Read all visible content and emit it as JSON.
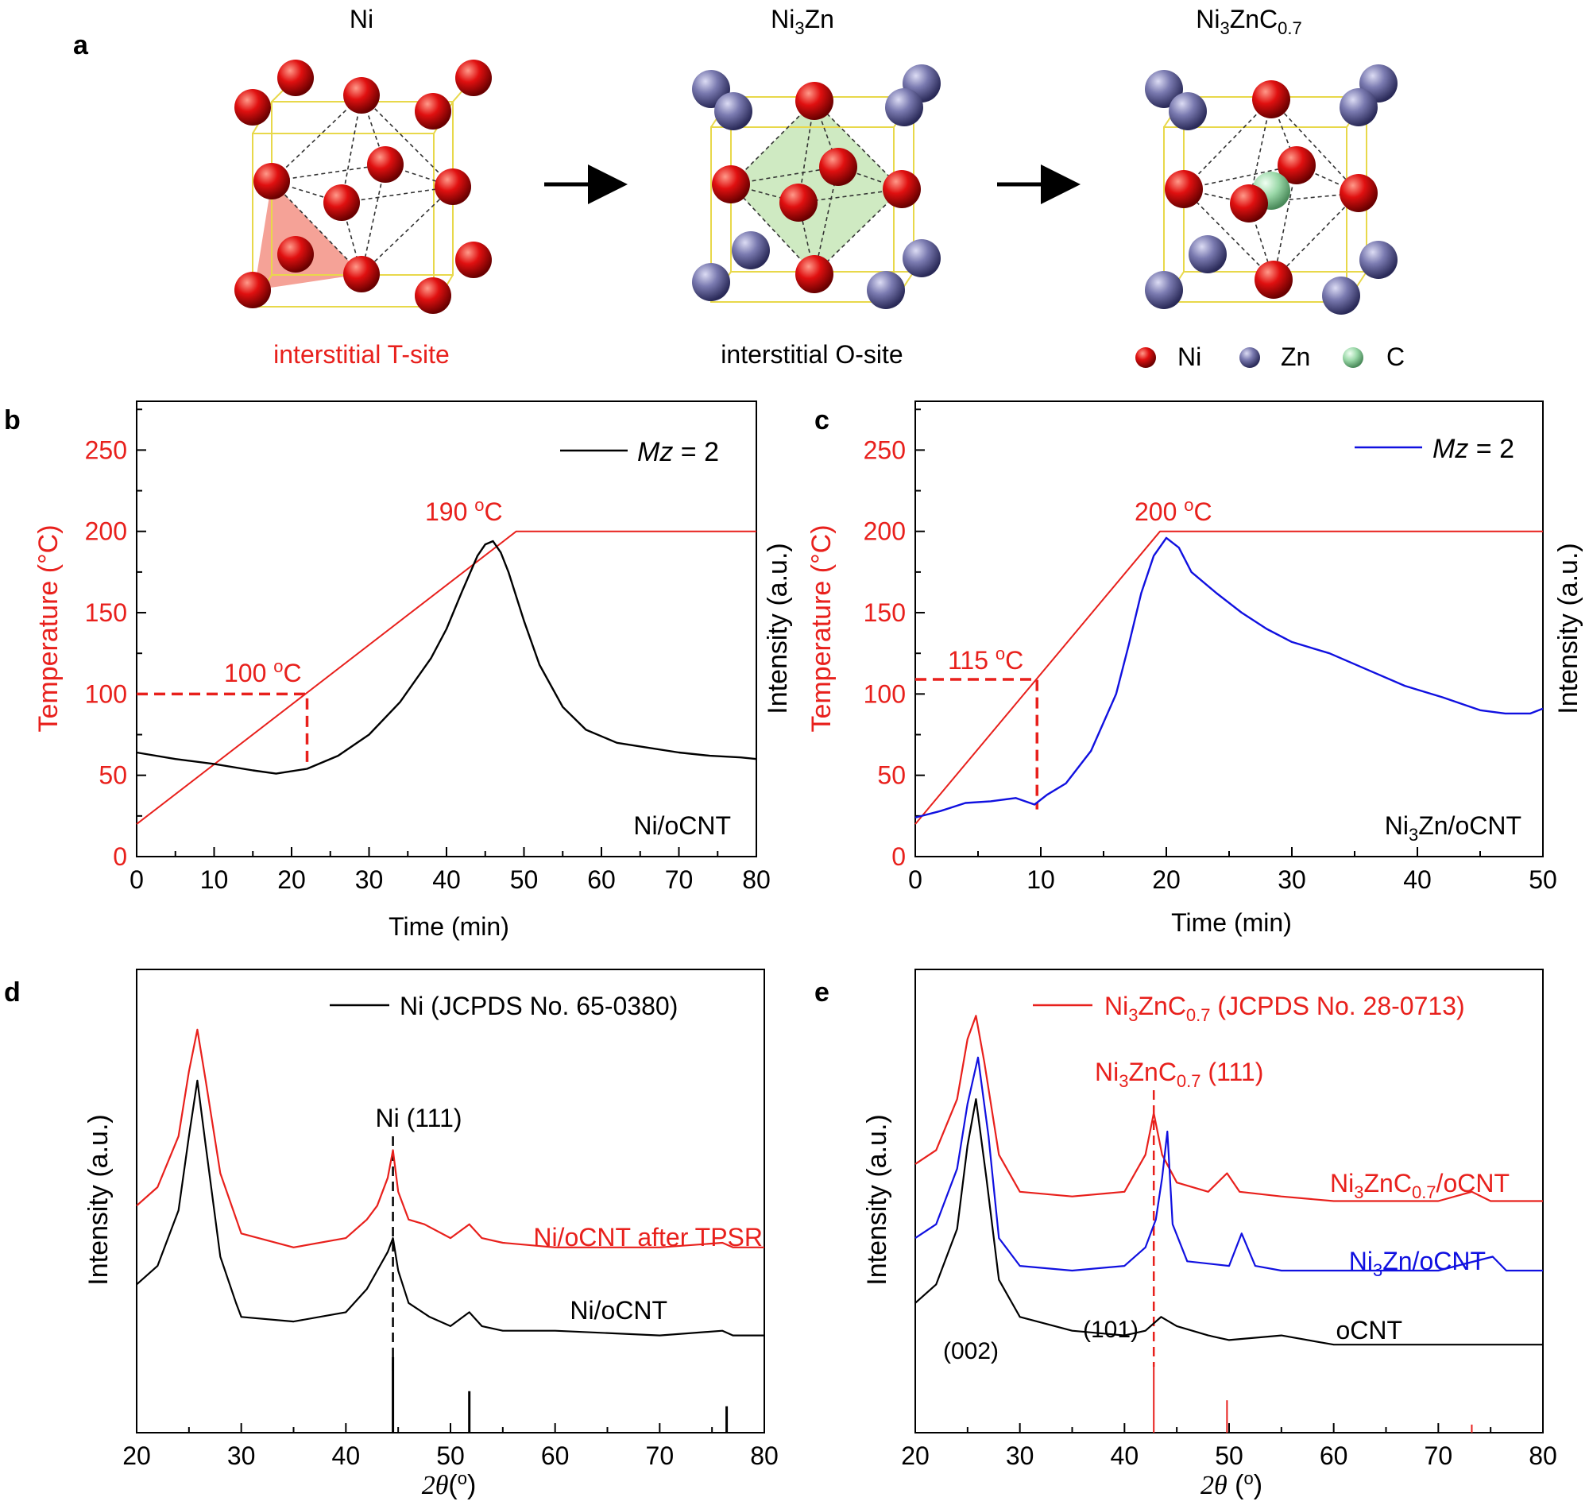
{
  "panel_a": {
    "letter": "a",
    "structures": [
      {
        "title": "Ni",
        "caption": "interstitial T-site",
        "caption_color": "#e8201c"
      },
      {
        "title_base": "Ni",
        "title_sub": "3",
        "title_rest": "Zn",
        "caption": "interstitial O-site",
        "caption_color": "#000000"
      },
      {
        "title_base": "Ni",
        "title_sub": "3",
        "title_rest": "ZnC",
        "title_sub2": "0.7"
      }
    ],
    "legend": [
      "Ni",
      "Zn",
      "C"
    ],
    "colors": {
      "ni": "#e01010",
      "zn": "#7a7ab0",
      "c": "#9ad8a8"
    }
  },
  "chart_data": [
    {
      "type": "line",
      "panel": "b",
      "x_label": "Time (min)",
      "x_ticks": [
        0,
        10,
        20,
        30,
        40,
        50,
        60,
        70,
        80
      ],
      "xlim": [
        0,
        80
      ],
      "y_label_left": "Temperature (°C)",
      "y_label_right": "Intensity (a.u.)",
      "y_ticks": [
        0,
        50,
        100,
        150,
        200,
        250
      ],
      "ylim": [
        0,
        280
      ],
      "legend": "Mz = 2",
      "legend_italic": "Mz",
      "legend_rest": " = 2",
      "legend_color": "#000000",
      "sample_label": "Ni/oCNT",
      "annotations": [
        {
          "text_base": "100 ",
          "text_sup": "o",
          "text_rest": "C",
          "x": 22,
          "y": 100
        },
        {
          "text_base": "190 ",
          "text_sup": "o",
          "text_rest": "C",
          "x": 46,
          "y": 200
        }
      ],
      "series": [
        {
          "role": "temperature",
          "color": "#e8201c",
          "x": [
            0,
            49,
            80
          ],
          "y": [
            20,
            200,
            200
          ]
        },
        {
          "role": "intensity",
          "color": "#000000",
          "x": [
            0,
            5,
            10,
            15,
            18,
            22,
            26,
            30,
            34,
            38,
            40,
            42,
            44,
            45,
            46,
            47,
            48,
            50,
            52,
            55,
            58,
            62,
            66,
            70,
            74,
            78,
            80
          ],
          "y": [
            64,
            60,
            57,
            53,
            51,
            54,
            62,
            75,
            95,
            122,
            140,
            163,
            185,
            192,
            194,
            187,
            175,
            145,
            118,
            92,
            78,
            70,
            67,
            64,
            62,
            61,
            60
          ]
        }
      ]
    },
    {
      "type": "line",
      "panel": "c",
      "x_label": "Time (min)",
      "x_ticks": [
        0,
        10,
        20,
        30,
        40,
        50
      ],
      "xlim": [
        0,
        50
      ],
      "y_label_left": "Temperature (°C)",
      "y_label_right": "Intensity (a.u.)",
      "y_ticks": [
        0,
        50,
        100,
        150,
        200,
        250
      ],
      "ylim": [
        0,
        280
      ],
      "legend": "Mz = 2",
      "legend_italic": "Mz",
      "legend_rest": " = 2",
      "legend_color": "#1010e0",
      "sample_label_base": "Ni",
      "sample_label_sub": "3",
      "sample_label_rest": "Zn/oCNT",
      "annotations": [
        {
          "text_base": "115 ",
          "text_sup": "o",
          "text_rest": "C",
          "x": 9.7,
          "y": 109
        },
        {
          "text_base": "200 ",
          "text_sup": "o",
          "text_rest": "C",
          "x": 19.5,
          "y": 200
        }
      ],
      "series": [
        {
          "role": "temperature",
          "color": "#e8201c",
          "x": [
            0,
            19.5,
            50
          ],
          "y": [
            20,
            200,
            200
          ]
        },
        {
          "role": "intensity",
          "color": "#1010e0",
          "x": [
            0,
            2,
            4,
            6,
            8,
            9.5,
            10.5,
            12,
            14,
            16,
            17,
            18,
            19,
            20,
            21,
            22,
            24,
            26,
            28,
            30,
            33,
            36,
            39,
            42,
            45,
            47,
            49,
            50
          ],
          "y": [
            24,
            28,
            33,
            34,
            36,
            32,
            38,
            45,
            65,
            100,
            130,
            162,
            185,
            196,
            190,
            175,
            162,
            150,
            140,
            132,
            125,
            115,
            105,
            98,
            90,
            88,
            88,
            91
          ]
        }
      ]
    },
    {
      "type": "line",
      "panel": "d",
      "x_label": "2θ(°)",
      "x_ticks": [
        20,
        30,
        40,
        50,
        60,
        70,
        80
      ],
      "xlim": [
        20,
        80
      ],
      "y_label": "Intensity (a.u.)",
      "legend": "Ni (JCPDS No. 65-0380)",
      "legend_color": "#000000",
      "peak_label": "Ni (111)",
      "peak_x": 44.5,
      "reference_lines": {
        "color": "#000000",
        "x": [
          44.5,
          51.8,
          76.4
        ],
        "rel_height": [
          1.0,
          0.55,
          0.35
        ]
      },
      "series": [
        {
          "name": "Ni/oCNT after TPSR",
          "color": "#e8201c",
          "x": [
            20,
            22,
            24,
            25,
            25.8,
            26.6,
            28,
            30,
            35,
            40,
            42,
            43,
            44,
            44.5,
            45,
            46,
            47.5,
            50,
            51.8,
            53,
            55,
            60,
            70,
            76,
            77,
            80
          ],
          "y": [
            0.49,
            0.53,
            0.64,
            0.78,
            0.87,
            0.76,
            0.56,
            0.43,
            0.4,
            0.42,
            0.46,
            0.49,
            0.55,
            0.61,
            0.52,
            0.46,
            0.45,
            0.42,
            0.45,
            0.42,
            0.41,
            0.4,
            0.4,
            0.41,
            0.4,
            0.4
          ]
        },
        {
          "name": "Ni/oCNT",
          "color": "#000000",
          "x": [
            20,
            22,
            24,
            25,
            25.8,
            26.6,
            28,
            29.5,
            30,
            35,
            40,
            42,
            43,
            44,
            44.5,
            45,
            46,
            48,
            50,
            51.8,
            53,
            55,
            60,
            70,
            76,
            77,
            80
          ],
          "y": [
            0.32,
            0.36,
            0.48,
            0.64,
            0.76,
            0.62,
            0.38,
            0.28,
            0.25,
            0.24,
            0.26,
            0.31,
            0.35,
            0.39,
            0.42,
            0.35,
            0.28,
            0.25,
            0.23,
            0.26,
            0.23,
            0.22,
            0.22,
            0.21,
            0.22,
            0.21,
            0.21
          ]
        }
      ]
    },
    {
      "type": "line",
      "panel": "e",
      "x_label": "2θ(°)",
      "x_ticks": [
        20,
        30,
        40,
        50,
        60,
        70,
        80
      ],
      "xlim": [
        20,
        80
      ],
      "y_label": "Intensity (a.u.)",
      "legend_base": "Ni",
      "legend_sub": "3",
      "legend_mid": "ZnC",
      "legend_sub2": "0.7",
      "legend_rest": " (JCPDS No. 28-0713)",
      "legend_color": "#e8201c",
      "peak_label_base": "Ni",
      "peak_label_sub": "3",
      "peak_label_mid": "ZnC",
      "peak_label_sub2": "0.7",
      "peak_label_rest": " (111)",
      "peak_x": 42.8,
      "miller_labels": [
        "(002)",
        "(101)"
      ],
      "reference_lines": {
        "color": "#e8201c",
        "x": [
          42.8,
          49.8,
          73.2
        ],
        "rel_height": [
          1.0,
          0.48,
          0.12
        ]
      },
      "series": [
        {
          "name_base": "Ni",
          "name_sub": "3",
          "name_mid": "ZnC",
          "name_sub2": "0.7",
          "name_rest": "/oCNT",
          "color": "#e8201c",
          "x": [
            20,
            22,
            24,
            25,
            25.8,
            26.6,
            28,
            30,
            35,
            40,
            42,
            42.8,
            43.6,
            45,
            48,
            49.8,
            51,
            55,
            60,
            70,
            73.2,
            75,
            80
          ],
          "y": [
            0.58,
            0.61,
            0.72,
            0.85,
            0.9,
            0.8,
            0.6,
            0.52,
            0.51,
            0.52,
            0.6,
            0.69,
            0.6,
            0.54,
            0.52,
            0.56,
            0.52,
            0.51,
            0.5,
            0.5,
            0.52,
            0.5,
            0.5
          ]
        },
        {
          "name_base": "Ni",
          "name_sub": "3",
          "name_rest": "Zn/oCNT",
          "color": "#1010e0",
          "x": [
            20,
            22,
            24,
            25,
            26,
            27,
            28,
            30,
            35,
            40,
            42,
            43,
            43.6,
            44.1,
            44.6,
            46,
            50,
            51.2,
            52.5,
            55,
            60,
            70,
            75.2,
            76.5,
            80
          ],
          "y": [
            0.42,
            0.45,
            0.57,
            0.71,
            0.81,
            0.64,
            0.42,
            0.36,
            0.35,
            0.36,
            0.4,
            0.46,
            0.55,
            0.65,
            0.45,
            0.37,
            0.36,
            0.43,
            0.36,
            0.35,
            0.35,
            0.35,
            0.38,
            0.35,
            0.35
          ]
        },
        {
          "name": "oCNT",
          "color": "#000000",
          "x": [
            20,
            22,
            24,
            25,
            25.8,
            26.8,
            28,
            30,
            35,
            40,
            42,
            43.5,
            45,
            48,
            50,
            55,
            60,
            70,
            80
          ],
          "y": [
            0.28,
            0.32,
            0.44,
            0.62,
            0.72,
            0.55,
            0.33,
            0.25,
            0.22,
            0.21,
            0.22,
            0.25,
            0.23,
            0.21,
            0.2,
            0.21,
            0.19,
            0.19,
            0.19
          ]
        }
      ]
    }
  ]
}
